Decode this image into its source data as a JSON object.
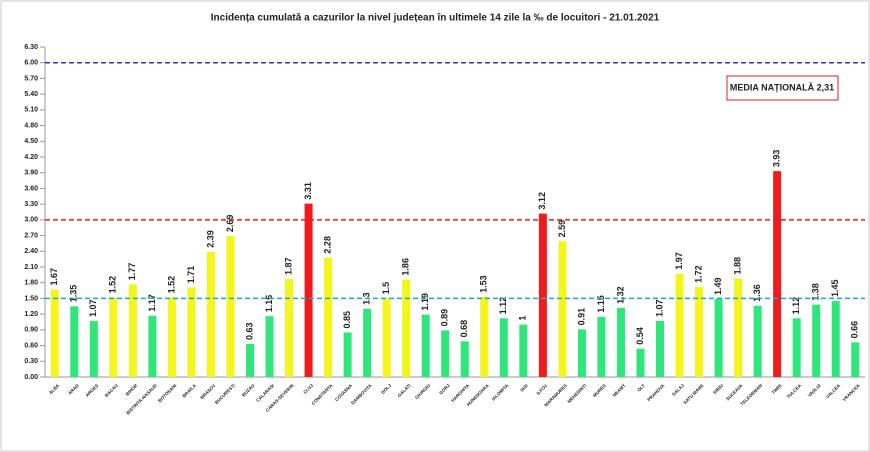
{
  "chart_data": {
    "type": "bar",
    "title": "Incidența cumulată a cazurilor la nivel județean în ultimele 14 zile la ‰ de locuitori - 21.01.2021",
    "annotation": "MEDIA NAȚIONALĂ 2,31",
    "categories": [
      "ALBA",
      "ARAD",
      "ARGES",
      "BACAU",
      "BIHOR",
      "BISTRITA-NASAUD",
      "BOTOSANI",
      "BRAILA",
      "BRASOV",
      "BUCURESTI",
      "BUZAU",
      "CALARASI",
      "CARAS-SEVERIN",
      "CLUJ",
      "CONSTANTA",
      "COVASNA",
      "DAMBOVITA",
      "DOLJ",
      "GALATI",
      "GIURGIU",
      "GORJ",
      "HARGHITA",
      "HUNEDOARA",
      "IALOMITA",
      "IASI",
      "ILFOV",
      "MARAMURES",
      "MEHEDINTI",
      "MURES",
      "NEAMT",
      "OLT",
      "PRAHOVA",
      "SALAJ",
      "SATU MARE",
      "SIBIU",
      "SUCEAVA",
      "TELEORMAN",
      "TIMIS",
      "TULCEA",
      "VASLUI",
      "VALCEA",
      "VRANCEA"
    ],
    "values": [
      1.67,
      1.35,
      1.07,
      1.52,
      1.77,
      1.17,
      1.52,
      1.71,
      2.39,
      2.69,
      0.63,
      1.16,
      1.87,
      3.31,
      2.28,
      0.85,
      1.3,
      1.5,
      1.86,
      1.19,
      0.89,
      0.68,
      1.53,
      1.12,
      1,
      3.12,
      2.59,
      0.91,
      1.15,
      1.32,
      0.54,
      1.07,
      1.97,
      1.72,
      1.49,
      1.88,
      1.36,
      3.93,
      1.12,
      1.38,
      1.45,
      0.66
    ],
    "colors": [
      "#f5f51e",
      "#2ee67a",
      "#2ee67a",
      "#f5f51e",
      "#f5f51e",
      "#2ee67a",
      "#f5f51e",
      "#f5f51e",
      "#f5f51e",
      "#f5f51e",
      "#2ee67a",
      "#2ee67a",
      "#f5f51e",
      "#ee1c1c",
      "#f5f51e",
      "#2ee67a",
      "#2ee67a",
      "#f5f51e",
      "#f5f51e",
      "#2ee67a",
      "#2ee67a",
      "#2ee67a",
      "#f5f51e",
      "#2ee67a",
      "#2ee67a",
      "#ee1c1c",
      "#f5f51e",
      "#2ee67a",
      "#2ee67a",
      "#2ee67a",
      "#2ee67a",
      "#2ee67a",
      "#f5f51e",
      "#f5f51e",
      "#2ee67a",
      "#f5f51e",
      "#2ee67a",
      "#ee1c1c",
      "#2ee67a",
      "#2ee67a",
      "#2ee67a",
      "#2ee67a"
    ],
    "reference_lines": [
      {
        "value": 6,
        "color": "#3b2bd6"
      },
      {
        "value": 3,
        "color": "#e02020"
      },
      {
        "value": 1.5,
        "color": "#1aa6d6"
      }
    ],
    "ylim": [
      0,
      6.3
    ],
    "yticks": [
      {
        "value": 0,
        "label": "0.00"
      },
      {
        "value": 0.3,
        "label": "0.30"
      },
      {
        "value": 0.6,
        "label": "0.60"
      },
      {
        "value": 0.9,
        "label": "0.90"
      },
      {
        "value": 1.2,
        "label": "1.20"
      },
      {
        "value": 1.5,
        "label": "1.50"
      },
      {
        "value": 1.8,
        "label": "1.80"
      },
      {
        "value": 2.1,
        "label": "2.10"
      },
      {
        "value": 2.4,
        "label": "2.40"
      },
      {
        "value": 2.7,
        "label": "2.70"
      },
      {
        "value": 3,
        "label": "3.00"
      },
      {
        "value": 3.3,
        "label": "3.30"
      },
      {
        "value": 3.6,
        "label": "3.60"
      },
      {
        "value": 3.9,
        "label": "3.90"
      },
      {
        "value": 4.2,
        "label": "4.20"
      },
      {
        "value": 4.5,
        "label": "4.50"
      },
      {
        "value": 4.8,
        "label": "4.80"
      },
      {
        "value": 5.1,
        "label": "5.10"
      },
      {
        "value": 5.4,
        "label": "5.40"
      },
      {
        "value": 5.7,
        "label": "5.70"
      },
      {
        "value": 6,
        "label": "6.00"
      },
      {
        "value": 6.3,
        "label": "6.30"
      }
    ]
  }
}
